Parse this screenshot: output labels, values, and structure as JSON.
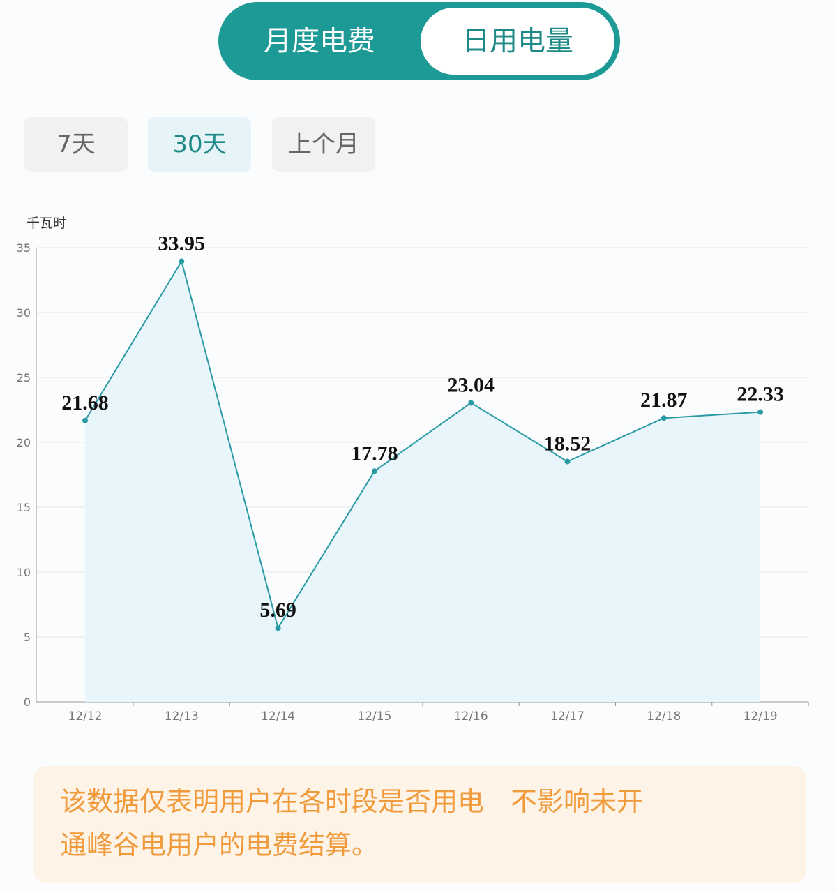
{
  "tabs": {
    "monthly_fee": "月度电费",
    "daily_usage": "日用电量",
    "active": "日用电量"
  },
  "ranges": {
    "items": [
      "7天",
      "30天",
      "上个月"
    ],
    "selected": "30天"
  },
  "chart_data": {
    "type": "area",
    "ylabel": "千瓦时",
    "categories": [
      "12/12",
      "12/13",
      "12/14",
      "12/15",
      "12/16",
      "12/17",
      "12/18",
      "12/19"
    ],
    "values": [
      21.68,
      33.95,
      5.69,
      17.78,
      23.04,
      18.52,
      21.87,
      22.33
    ],
    "data_labels": [
      "21.68",
      "33.95",
      "5.69",
      "17.78",
      "23.04",
      "18.52",
      "21.87",
      "22.33"
    ],
    "ylim": [
      0,
      35
    ],
    "yticks": [
      "0",
      "5",
      "10",
      "15",
      "20",
      "25",
      "30",
      "35"
    ],
    "grid": true,
    "line_color": "#2a9aa4",
    "fill_color": "#e8f5fa"
  },
  "note": {
    "line1": "该数据仅表明用户在各时段是否用电　不影响未开",
    "line2": "通峰谷电用户的电费结算。"
  }
}
